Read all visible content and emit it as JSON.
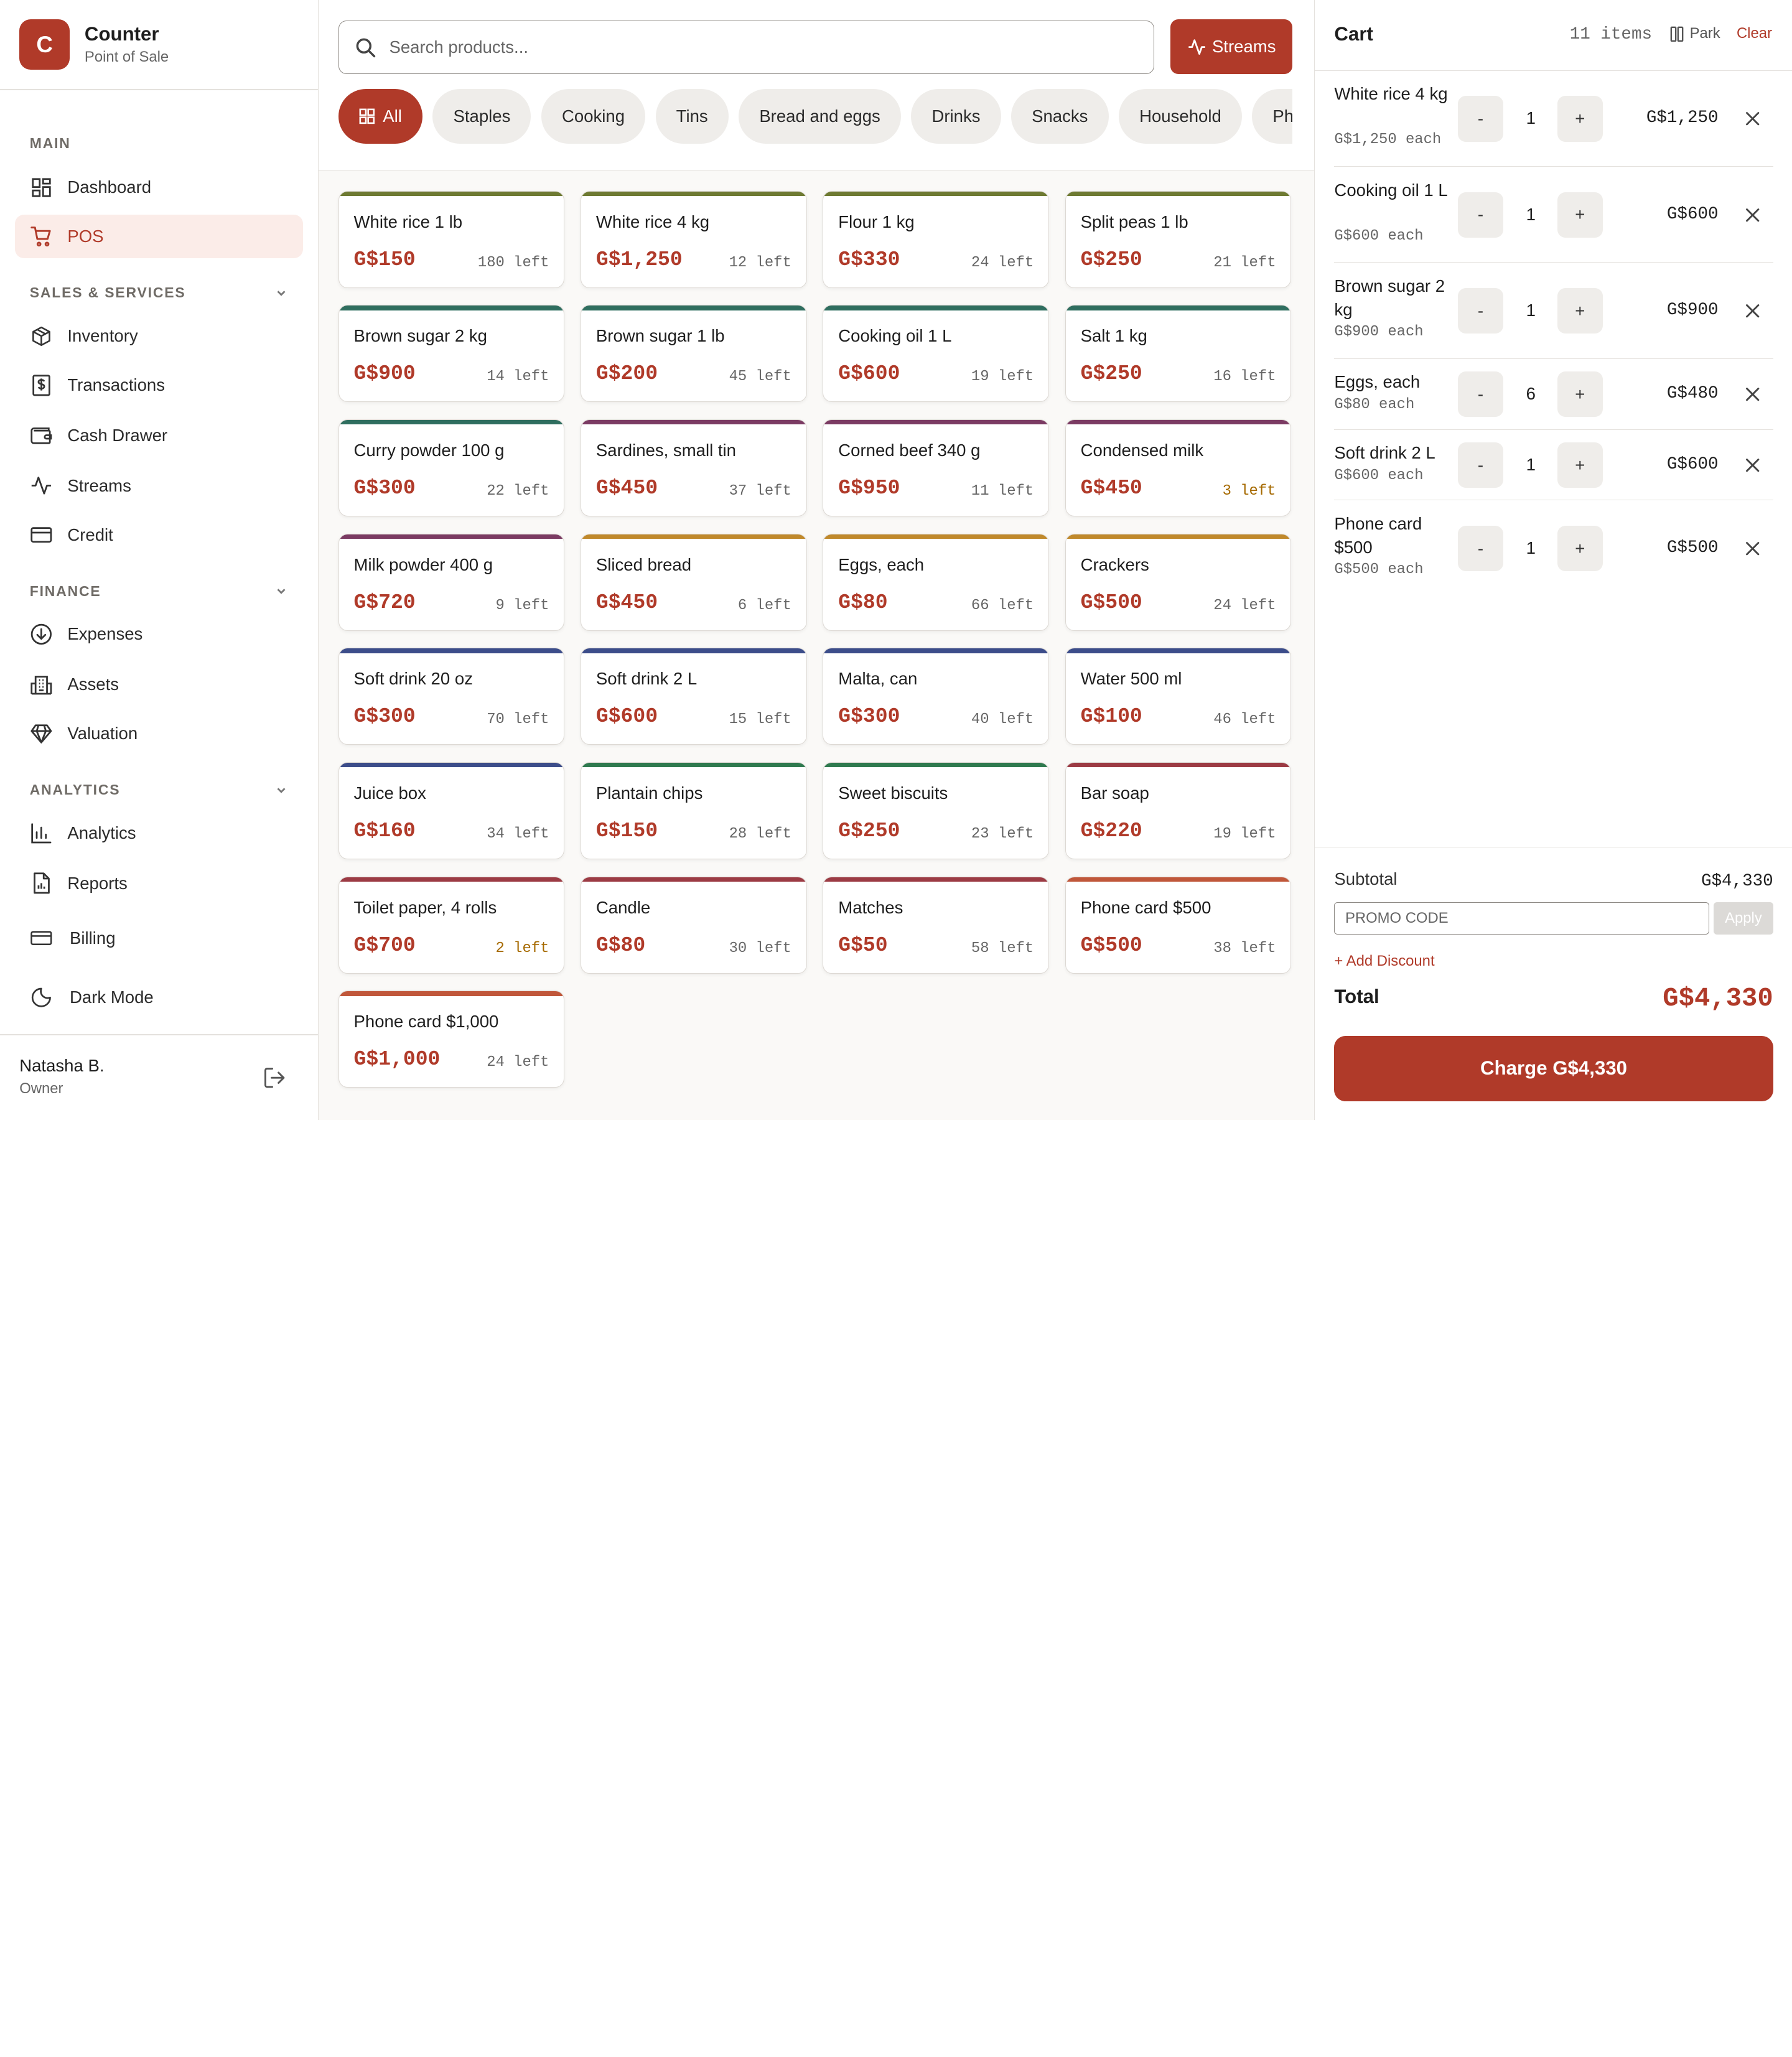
{
  "brand": {
    "logo_letter": "C",
    "name": "Counter",
    "subtitle": "Point of Sale",
    "accent": "#b03a29"
  },
  "sidebar": {
    "sections": {
      "main": "MAIN",
      "sales": "SALES & SERVICES",
      "finance": "FINANCE",
      "analytics": "ANALYTICS"
    },
    "items": {
      "dashboard": "Dashboard",
      "pos": "POS",
      "inventory": "Inventory",
      "transactions": "Transactions",
      "cash_drawer": "Cash Drawer",
      "streams": "Streams",
      "credit": "Credit",
      "expenses": "Expenses",
      "assets": "Assets",
      "valuation": "Valuation",
      "analytics": "Analytics",
      "reports": "Reports",
      "billing": "Billing",
      "dark_mode": "Dark Mode"
    },
    "active": "pos",
    "user": {
      "name": "Natasha B.",
      "role": "Owner"
    }
  },
  "search": {
    "placeholder": "Search products...",
    "value": ""
  },
  "streams_button": "Streams",
  "categories": [
    "All",
    "Staples",
    "Cooking",
    "Tins",
    "Bread and eggs",
    "Drinks",
    "Snacks",
    "Household",
    "Phone cards"
  ],
  "active_category": "All",
  "category_colors": {
    "staples": "#6e7a32",
    "cooking": "#2f6e5f",
    "tins": "#7b3b63",
    "bread": "#c0892b",
    "drinks": "#3c4d8a",
    "snacks": "#2f7a4f",
    "household": "#9c3b44",
    "phone": "#c0573a"
  },
  "products": [
    {
      "name": "White rice 1 lb",
      "price": "G$150",
      "stock": "180 left",
      "cat": "staples",
      "low": false
    },
    {
      "name": "White rice 4 kg",
      "price": "G$1,250",
      "stock": "12 left",
      "cat": "staples",
      "low": false
    },
    {
      "name": "Flour 1 kg",
      "price": "G$330",
      "stock": "24 left",
      "cat": "staples",
      "low": false
    },
    {
      "name": "Split peas 1 lb",
      "price": "G$250",
      "stock": "21 left",
      "cat": "staples",
      "low": false
    },
    {
      "name": "Brown sugar 2 kg",
      "price": "G$900",
      "stock": "14 left",
      "cat": "cooking",
      "low": false
    },
    {
      "name": "Brown sugar 1 lb",
      "price": "G$200",
      "stock": "45 left",
      "cat": "cooking",
      "low": false
    },
    {
      "name": "Cooking oil 1 L",
      "price": "G$600",
      "stock": "19 left",
      "cat": "cooking",
      "low": false
    },
    {
      "name": "Salt 1 kg",
      "price": "G$250",
      "stock": "16 left",
      "cat": "cooking",
      "low": false
    },
    {
      "name": "Curry powder 100 g",
      "price": "G$300",
      "stock": "22 left",
      "cat": "cooking",
      "low": false
    },
    {
      "name": "Sardines, small tin",
      "price": "G$450",
      "stock": "37 left",
      "cat": "tins",
      "low": false
    },
    {
      "name": "Corned beef 340 g",
      "price": "G$950",
      "stock": "11 left",
      "cat": "tins",
      "low": false
    },
    {
      "name": "Condensed milk",
      "price": "G$450",
      "stock": "3 left",
      "cat": "tins",
      "low": true
    },
    {
      "name": "Milk powder 400 g",
      "price": "G$720",
      "stock": "9 left",
      "cat": "tins",
      "low": false
    },
    {
      "name": "Sliced bread",
      "price": "G$450",
      "stock": "6 left",
      "cat": "bread",
      "low": false
    },
    {
      "name": "Eggs, each",
      "price": "G$80",
      "stock": "66 left",
      "cat": "bread",
      "low": false
    },
    {
      "name": "Crackers",
      "price": "G$500",
      "stock": "24 left",
      "cat": "bread",
      "low": false
    },
    {
      "name": "Soft drink 20 oz",
      "price": "G$300",
      "stock": "70 left",
      "cat": "drinks",
      "low": false
    },
    {
      "name": "Soft drink 2 L",
      "price": "G$600",
      "stock": "15 left",
      "cat": "drinks",
      "low": false
    },
    {
      "name": "Malta, can",
      "price": "G$300",
      "stock": "40 left",
      "cat": "drinks",
      "low": false
    },
    {
      "name": "Water 500 ml",
      "price": "G$100",
      "stock": "46 left",
      "cat": "drinks",
      "low": false
    },
    {
      "name": "Juice box",
      "price": "G$160",
      "stock": "34 left",
      "cat": "drinks",
      "low": false
    },
    {
      "name": "Plantain chips",
      "price": "G$150",
      "stock": "28 left",
      "cat": "snacks",
      "low": false
    },
    {
      "name": "Sweet biscuits",
      "price": "G$250",
      "stock": "23 left",
      "cat": "snacks",
      "low": false
    },
    {
      "name": "Bar soap",
      "price": "G$220",
      "stock": "19 left",
      "cat": "household",
      "low": false
    },
    {
      "name": "Toilet paper, 4 rolls",
      "price": "G$700",
      "stock": "2 left",
      "cat": "household",
      "low": true
    },
    {
      "name": "Candle",
      "price": "G$80",
      "stock": "30 left",
      "cat": "household",
      "low": false
    },
    {
      "name": "Matches",
      "price": "G$50",
      "stock": "58 left",
      "cat": "household",
      "low": false
    },
    {
      "name": "Phone card $500",
      "price": "G$500",
      "stock": "38 left",
      "cat": "phone",
      "low": false
    },
    {
      "name": "Phone card $1,000",
      "price": "G$1,000",
      "stock": "24 left",
      "cat": "phone",
      "low": false
    }
  ],
  "cart": {
    "title": "Cart",
    "count": "11 items",
    "park": "Park",
    "clear": "Clear",
    "lines": [
      {
        "name": "White rice 4 kg",
        "each": "G$1,250 each",
        "qty": "1",
        "total": "G$1,250"
      },
      {
        "name": "Cooking oil 1 L",
        "each": "G$600 each",
        "qty": "1",
        "total": "G$600"
      },
      {
        "name": "Brown sugar 2 kg",
        "each": "G$900 each",
        "qty": "1",
        "total": "G$900"
      },
      {
        "name": "Eggs, each",
        "each": "G$80 each",
        "qty": "6",
        "total": "G$480"
      },
      {
        "name": "Soft drink 2 L",
        "each": "G$600 each",
        "qty": "1",
        "total": "G$600"
      },
      {
        "name": "Phone card $500",
        "each": "G$500 each",
        "qty": "1",
        "total": "G$500"
      }
    ],
    "minus": "-",
    "plus": "+",
    "subtotal_label": "Subtotal",
    "subtotal": "G$4,330",
    "promo_placeholder": "PROMO CODE",
    "apply": "Apply",
    "add_discount": "+ Add Discount",
    "total_label": "Total",
    "total": "G$4,330",
    "charge": "Charge G$4,330"
  }
}
